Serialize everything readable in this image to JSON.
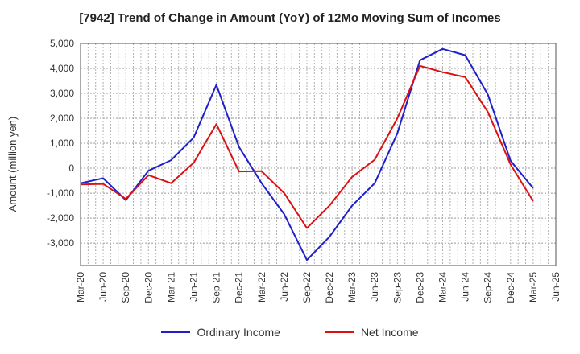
{
  "chart_data": {
    "type": "line",
    "title": "[7942]  Trend of Change in Amount (YoY) of 12Mo Moving Sum of Incomes",
    "ylabel": "Amount (million yen)",
    "ylim": [
      -3900,
      5000
    ],
    "yticks": [
      5000,
      4000,
      3000,
      2000,
      1000,
      0,
      -1000,
      -2000,
      -3000
    ],
    "ytick_labels": [
      "5,000",
      "4,000",
      "3,000",
      "2,000",
      "1,000",
      "0",
      "-1,000",
      "-2,000",
      "-3,000"
    ],
    "categories": [
      "Mar-20",
      "Jun-20",
      "Sep-20",
      "Dec-20",
      "Mar-21",
      "Jun-21",
      "Sep-21",
      "Dec-21",
      "Mar-22",
      "Jun-22",
      "Sep-22",
      "Dec-22",
      "Mar-23",
      "Jun-23",
      "Sep-23",
      "Dec-23",
      "Mar-24",
      "Jun-24",
      "Sep-24",
      "Dec-24",
      "Mar-25",
      "Jun-25"
    ],
    "grid": true,
    "legend_position": "bottom",
    "series": [
      {
        "name": "Ordinary Income",
        "color": "#1f1fcc",
        "values": [
          -600,
          -400,
          -1280,
          -100,
          320,
          1230,
          3340,
          850,
          -600,
          -1850,
          -3680,
          -2750,
          -1500,
          -600,
          1400,
          4330,
          4780,
          4530,
          2950,
          300,
          -800,
          null
        ]
      },
      {
        "name": "Net Income",
        "color": "#dd1111",
        "values": [
          -650,
          -630,
          -1230,
          -280,
          -600,
          220,
          1770,
          -130,
          -120,
          -1000,
          -2400,
          -1500,
          -350,
          340,
          2000,
          4100,
          3850,
          3650,
          2250,
          150,
          -1320,
          null
        ]
      }
    ]
  }
}
